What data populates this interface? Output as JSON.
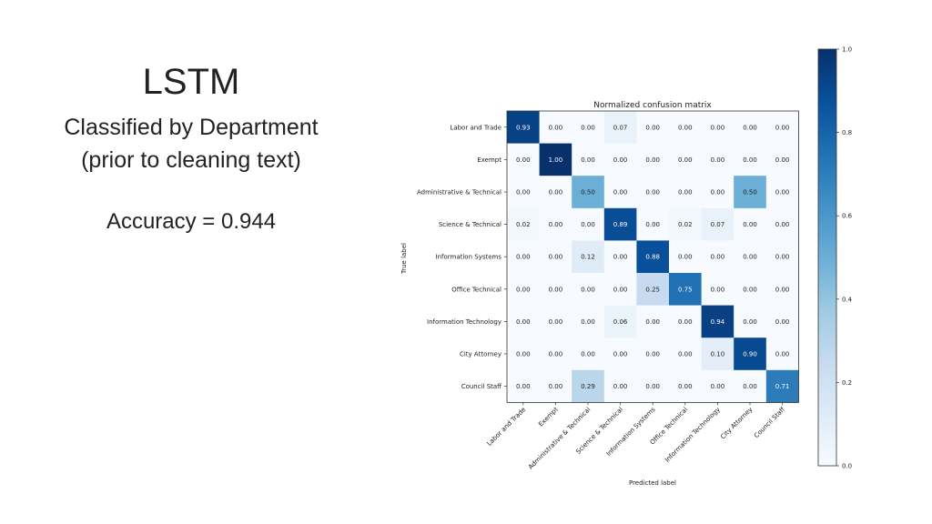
{
  "slide": {
    "title": "LSTM",
    "subtitle_line1": "Classified by Department",
    "subtitle_line2": "(prior to cleaning text)",
    "accuracy": "Accuracy = 0.944"
  },
  "chart_data": {
    "type": "heatmap",
    "title": "Normalized confusion matrix",
    "xlabel": "Predicted label",
    "ylabel": "True label",
    "labels": [
      "Labor and Trade",
      "Exempt",
      "Administrative & Technical",
      "Science & Technical",
      "Information Systems",
      "Office Technical",
      "Information Technology",
      "City Attorney",
      "Council Staff"
    ],
    "matrix": [
      [
        0.93,
        0.0,
        0.0,
        0.07,
        0.0,
        0.0,
        0.0,
        0.0,
        0.0
      ],
      [
        0.0,
        1.0,
        0.0,
        0.0,
        0.0,
        0.0,
        0.0,
        0.0,
        0.0
      ],
      [
        0.0,
        0.0,
        0.5,
        0.0,
        0.0,
        0.0,
        0.0,
        0.5,
        0.0
      ],
      [
        0.02,
        0.0,
        0.0,
        0.89,
        0.0,
        0.02,
        0.07,
        0.0,
        0.0
      ],
      [
        0.0,
        0.0,
        0.12,
        0.0,
        0.88,
        0.0,
        0.0,
        0.0,
        0.0
      ],
      [
        0.0,
        0.0,
        0.0,
        0.0,
        0.25,
        0.75,
        0.0,
        0.0,
        0.0
      ],
      [
        0.0,
        0.0,
        0.0,
        0.06,
        0.0,
        0.0,
        0.94,
        0.0,
        0.0
      ],
      [
        0.0,
        0.0,
        0.0,
        0.0,
        0.0,
        0.0,
        0.1,
        0.9,
        0.0
      ],
      [
        0.0,
        0.0,
        0.29,
        0.0,
        0.0,
        0.0,
        0.0,
        0.0,
        0.71
      ]
    ],
    "colorbar_ticks": [
      "0.0",
      "0.2",
      "0.4",
      "0.6",
      "0.8",
      "1.0"
    ],
    "colorbar_range": [
      0,
      1
    ],
    "colormap": [
      "#f7fbff",
      "#deebf7",
      "#c6dbef",
      "#9ecae1",
      "#6baed6",
      "#4292c6",
      "#2171b5",
      "#08519c",
      "#08306b"
    ]
  }
}
